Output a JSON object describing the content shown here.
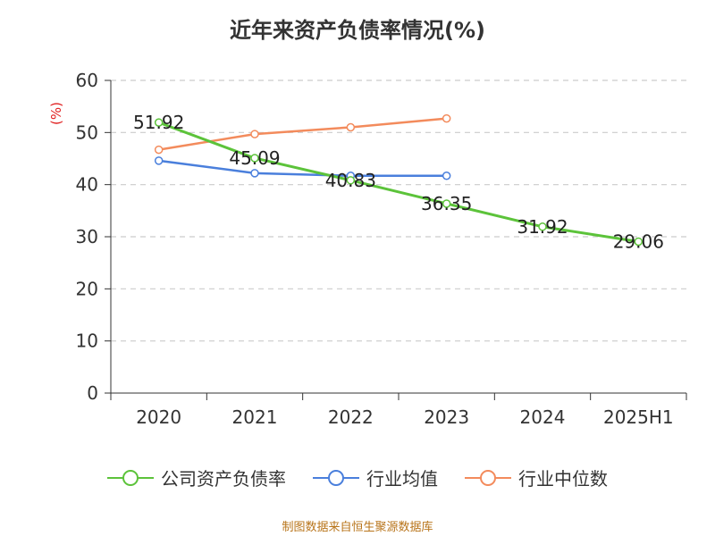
{
  "title": "近年来资产负债率情况(%)",
  "source": "制图数据来自恒生聚源数据库",
  "chart_data": {
    "type": "line",
    "categories": [
      "2020",
      "2021",
      "2022",
      "2023",
      "2024",
      "2025H1"
    ],
    "ylabel": "(%)",
    "ylim": [
      0,
      60
    ],
    "yticks": [
      0,
      10,
      20,
      30,
      40,
      50,
      60
    ],
    "grid": true,
    "legend_position": "bottom",
    "series": [
      {
        "name": "公司资产负债率",
        "color": "#5cc33a",
        "values": [
          51.92,
          45.09,
          40.83,
          36.35,
          31.92,
          29.06
        ],
        "data_labels": [
          "51.92",
          "45.09",
          "40.83",
          "36.35",
          "31.92",
          "29.06"
        ]
      },
      {
        "name": "行业均值",
        "color": "#4a7fdc",
        "values": [
          44.6,
          42.2,
          41.7,
          41.7,
          null,
          null
        ]
      },
      {
        "name": "行业中位数",
        "color": "#f38b5c",
        "values": [
          46.7,
          49.7,
          51.0,
          52.7,
          null,
          null
        ]
      }
    ]
  }
}
